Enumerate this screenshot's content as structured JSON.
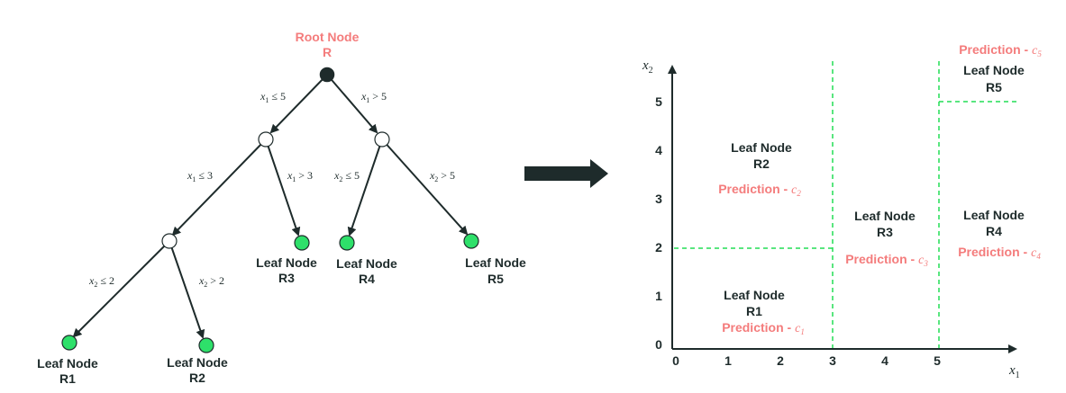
{
  "tree": {
    "root": {
      "title": "Root Node",
      "name": "R"
    },
    "conditions": {
      "root_left": {
        "var": "x",
        "sub": "1",
        "op": "≤",
        "val": "5"
      },
      "root_right": {
        "var": "x",
        "sub": "1",
        "op": ">",
        "val": "5"
      },
      "n1_left": {
        "var": "x",
        "sub": "1",
        "op": "≤",
        "val": "3"
      },
      "n1_right": {
        "var": "x",
        "sub": "1",
        "op": ">",
        "val": "3"
      },
      "n2_left": {
        "var": "x",
        "sub": "2",
        "op": "≤",
        "val": "5"
      },
      "n2_right": {
        "var": "x",
        "sub": "2",
        "op": ">",
        "val": "5"
      },
      "n3_left": {
        "var": "x",
        "sub": "2",
        "op": "≤",
        "val": "2"
      },
      "n3_right": {
        "var": "x",
        "sub": "2",
        "op": ">",
        "val": "2"
      }
    },
    "leaves": {
      "r1": {
        "title": "Leaf Node",
        "name": "R1"
      },
      "r2": {
        "title": "Leaf Node",
        "name": "R2"
      },
      "r3": {
        "title": "Leaf Node",
        "name": "R3"
      },
      "r4": {
        "title": "Leaf Node",
        "name": "R4"
      },
      "r5": {
        "title": "Leaf Node",
        "name": "R5"
      }
    }
  },
  "partition": {
    "x_axis": {
      "var": "x",
      "sub": "1",
      "ticks": [
        "0",
        "1",
        "2",
        "3",
        "4",
        "5"
      ]
    },
    "y_axis": {
      "var": "x",
      "sub": "2",
      "ticks": [
        "0",
        "1",
        "2",
        "3",
        "4",
        "5"
      ]
    },
    "regions": {
      "r1": {
        "title": "Leaf Node",
        "name": "R1",
        "prediction": "Prediction - ",
        "symbol": "c",
        "sub": "1"
      },
      "r2": {
        "title": "Leaf Node",
        "name": "R2",
        "prediction": "Prediction - ",
        "symbol": "c",
        "sub": "2"
      },
      "r3": {
        "title": "Leaf Node",
        "name": "R3",
        "prediction": "Prediction - ",
        "symbol": "c",
        "sub": "3"
      },
      "r4": {
        "title": "Leaf Node",
        "name": "R4",
        "prediction": "Prediction - ",
        "symbol": "c",
        "sub": "4"
      },
      "r5": {
        "title": "Leaf Node",
        "name": "R5",
        "prediction": "Prediction - ",
        "symbol": "c",
        "sub": "5"
      }
    }
  },
  "colors": {
    "ink": "#1e2b2b",
    "accent": "#f47c7c",
    "leaf_fill": "#2ee06a",
    "split_line": "#22dd55"
  }
}
